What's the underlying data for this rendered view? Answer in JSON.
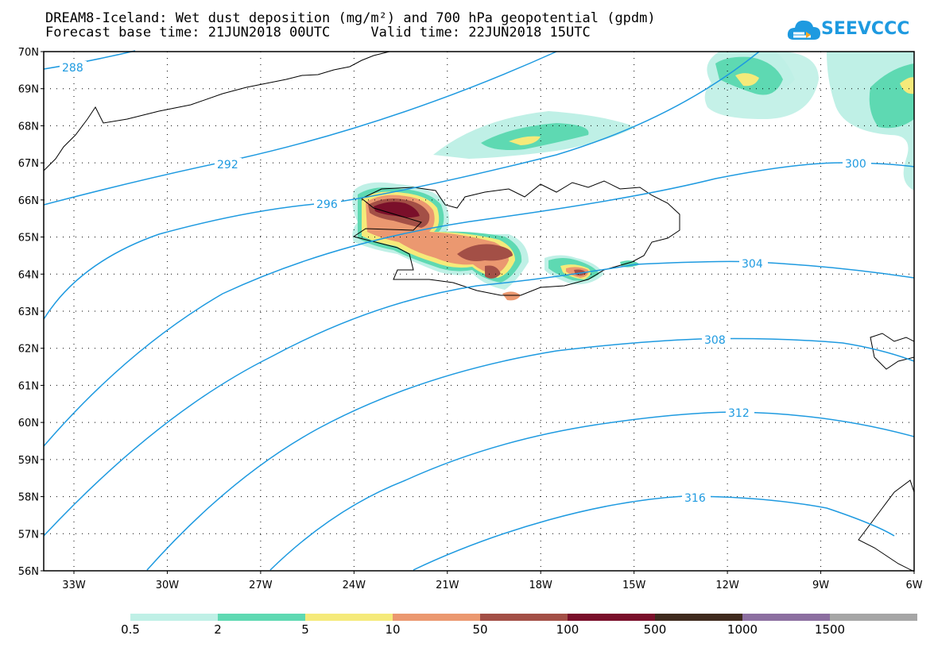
{
  "header": {
    "title_line1": "DREAM8-Iceland: Wet dust deposition (mg/m²) and 700 hPa geopotential (gpdm)",
    "title_line2": "Forecast base time: 21JUN2018 00UTC     Valid time: 22JUN2018 15UTC"
  },
  "logo": {
    "text": "SEEVCCC",
    "icon": "cloud-icon",
    "color": "#1e9ae0"
  },
  "map": {
    "lat_labels": [
      "70N",
      "69N",
      "68N",
      "67N",
      "66N",
      "65N",
      "64N",
      "63N",
      "62N",
      "61N",
      "60N",
      "59N",
      "58N",
      "57N",
      "56N"
    ],
    "lon_labels": [
      "33W",
      "30W",
      "27W",
      "24W",
      "21W",
      "18W",
      "15W",
      "12W",
      "9W",
      "6W"
    ],
    "contour_labels": [
      "288",
      "292",
      "296",
      "300",
      "304",
      "308",
      "312",
      "316"
    ],
    "contour_color": "#1e9ae0"
  },
  "legend": {
    "labels": [
      "0.5",
      "2",
      "5",
      "10",
      "50",
      "100",
      "500",
      "1000",
      "1500"
    ],
    "colors": [
      "#bff0e6",
      "#5ed9b2",
      "#f5ea7a",
      "#eb9870",
      "#a34f46",
      "#7a0f2a",
      "#3f2a1e",
      "#8c6fa0",
      "#a6a6a6"
    ]
  }
}
